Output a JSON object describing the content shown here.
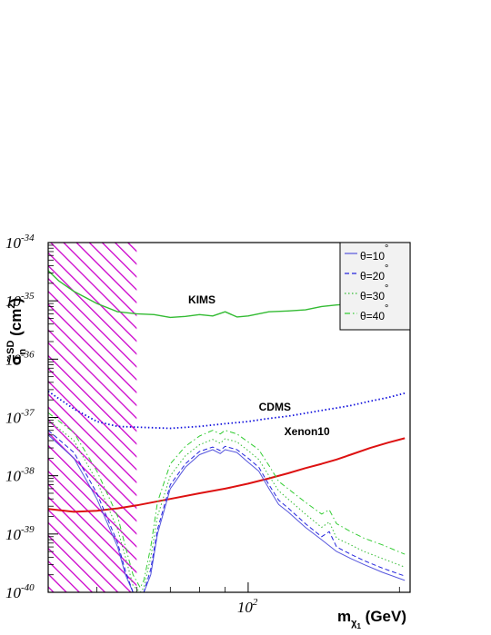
{
  "chart_data": {
    "type": "line",
    "title": "",
    "xscale": "log",
    "yscale": "log",
    "xlim": [
      40,
      210
    ],
    "ylim": [
      1e-40,
      1e-34
    ],
    "x_ticks": [
      {
        "value": 100,
        "base": "10",
        "exp": "2"
      }
    ],
    "y_ticks": [
      {
        "value": 1e-34,
        "base": "10",
        "exp": "-34"
      },
      {
        "value": 1e-35,
        "base": "10",
        "exp": "-35"
      },
      {
        "value": 1e-36,
        "base": "10",
        "exp": "-36"
      },
      {
        "value": 1e-37,
        "base": "10",
        "exp": "-37"
      },
      {
        "value": 1e-38,
        "base": "10",
        "exp": "-38"
      },
      {
        "value": 1e-39,
        "base": "10",
        "exp": "-39"
      },
      {
        "value": 1e-40,
        "base": "10",
        "exp": "-40"
      }
    ],
    "xlabel": {
      "main": "m",
      "sub": "χ",
      "subsub": "1",
      "unit": " (GeV)"
    },
    "ylabel": {
      "sigma": "σ̃",
      "sub": "n",
      "sup": "SD",
      "unit": " (cm",
      "unit_sup": "2",
      "close": ")"
    },
    "excluded_region": {
      "x": [
        40,
        60
      ],
      "color": "#cc00cc",
      "style": "hatched"
    },
    "legend": {
      "position": "top-right",
      "entries": [
        {
          "pre": "θ=10",
          "deg": "°",
          "color": "#5555dd",
          "dash": "solid"
        },
        {
          "pre": "θ=20",
          "deg": "°",
          "color": "#2222dd",
          "dash": "dashed"
        },
        {
          "pre": "θ=30",
          "deg": "°",
          "color": "#33bb33",
          "dash": "dotted"
        },
        {
          "pre": "θ=40",
          "deg": "°",
          "color": "#33cc33",
          "dash": "dashdot"
        }
      ]
    },
    "series": [
      {
        "name": "KIMS",
        "color": "#33bb33",
        "dash": "solid",
        "width": 1.4,
        "label_at": [
          76,
          9e-36
        ],
        "x": [
          40,
          42,
          45,
          50,
          55,
          60,
          65,
          70,
          75,
          80,
          85,
          90,
          95,
          100,
          110,
          120,
          130,
          140,
          150,
          160,
          175,
          190,
          205
        ],
        "y": [
          3.3e-35,
          2.2e-35,
          1.45e-35,
          9e-36,
          6.5e-36,
          6e-36,
          5.8e-36,
          5.2e-36,
          5.4e-36,
          5.8e-36,
          5.5e-36,
          6.5e-36,
          5.3e-36,
          5.5e-36,
          6.5e-36,
          6.7e-36,
          7e-36,
          8e-36,
          8.5e-36,
          8.8e-36,
          9.5e-36,
          1e-35,
          1.1e-35
        ]
      },
      {
        "name": "CDMS",
        "color": "#1111dd",
        "dash": "dotted",
        "width": 1.8,
        "label_at": [
          105,
          1.3e-37
        ],
        "x": [
          40,
          45,
          50,
          55,
          60,
          70,
          80,
          90,
          100,
          110,
          120,
          130,
          140,
          150,
          160,
          175,
          190,
          205
        ],
        "y": [
          2.8e-37,
          1.4e-37,
          8.5e-38,
          7e-38,
          6.8e-38,
          6.5e-38,
          7e-38,
          7.8e-38,
          8.5e-38,
          9.6e-38,
          1.05e-37,
          1.18e-37,
          1.32e-37,
          1.45e-37,
          1.6e-37,
          1.9e-37,
          2.2e-37,
          2.6e-37
        ]
      },
      {
        "name": "Xenon10",
        "color": "#dd1111",
        "dash": "solid",
        "width": 2,
        "label_at": [
          118,
          5e-38
        ],
        "x": [
          40,
          45,
          50,
          55,
          60,
          70,
          80,
          90,
          100,
          110,
          120,
          130,
          140,
          150,
          160,
          175,
          190,
          205
        ],
        "y": [
          2.7e-39,
          2.4e-39,
          2.5e-39,
          2.75e-39,
          3.1e-39,
          4e-39,
          5e-39,
          6e-39,
          7.3e-39,
          9e-39,
          1.1e-38,
          1.35e-38,
          1.6e-38,
          1.9e-38,
          2.3e-38,
          3e-38,
          3.7e-38,
          4.4e-38
        ]
      },
      {
        "name": "θ=10°",
        "color": "#5555dd",
        "dash": "solid",
        "width": 1,
        "x": [
          40,
          45,
          50,
          55,
          57,
          59,
          61,
          62,
          64,
          66,
          70,
          75,
          80,
          85,
          88,
          90,
          95,
          100,
          105,
          110,
          115,
          120,
          130,
          140,
          150,
          160,
          170,
          185,
          205
        ],
        "y": [
          5e-38,
          2e-38,
          4e-39,
          6e-40,
          2e-40,
          1e-40,
          1e-40,
          1e-40,
          2e-40,
          1e-39,
          6e-39,
          1.4e-38,
          2.3e-38,
          2.8e-38,
          2.4e-38,
          2.8e-38,
          2.5e-38,
          1.7e-38,
          1.2e-38,
          6e-39,
          3.2e-39,
          2.4e-39,
          1.3e-39,
          8e-40,
          5e-40,
          3.8e-40,
          3e-40,
          2.2e-40,
          1.6e-40
        ]
      },
      {
        "name": "θ=20°",
        "color": "#2222dd",
        "dash": "dashed",
        "width": 1,
        "x": [
          40,
          45,
          50,
          55,
          57,
          59,
          61,
          62,
          64,
          66,
          70,
          75,
          80,
          85,
          88,
          90,
          95,
          100,
          105,
          110,
          115,
          120,
          130,
          140,
          145,
          150,
          160,
          170,
          185,
          205
        ],
        "y": [
          6e-38,
          2.5e-38,
          5e-39,
          7e-40,
          2.3e-40,
          1e-40,
          1e-40,
          1e-40,
          2.5e-40,
          1.2e-39,
          7e-39,
          1.6e-38,
          2.6e-38,
          3.1e-38,
          2.7e-38,
          3.2e-38,
          2.8e-38,
          2e-38,
          1.4e-38,
          7e-39,
          3.8e-39,
          2.8e-39,
          1.5e-39,
          9e-40,
          1.1e-39,
          6e-40,
          4.5e-40,
          3.5e-40,
          2.6e-40,
          1.9e-40
        ]
      },
      {
        "name": "θ=30°",
        "color": "#33bb33",
        "dash": "dotted",
        "width": 1,
        "x": [
          40,
          45,
          50,
          55,
          57,
          59,
          61,
          62,
          64,
          66,
          70,
          75,
          80,
          85,
          88,
          90,
          95,
          100,
          105,
          110,
          115,
          120,
          130,
          140,
          145,
          150,
          160,
          170,
          185,
          205
        ],
        "y": [
          9e-38,
          4e-38,
          8e-39,
          1.2e-39,
          4e-40,
          1.3e-40,
          1e-40,
          1.2e-40,
          4e-40,
          2e-39,
          1e-38,
          2.2e-38,
          3.4e-38,
          4.2e-38,
          3.6e-38,
          4.3e-38,
          3.8e-38,
          2.7e-38,
          1.9e-38,
          1e-38,
          5.5e-39,
          4e-39,
          2.2e-39,
          1.3e-39,
          1.6e-39,
          8.5e-40,
          6.5e-40,
          5e-40,
          3.8e-40,
          2.7e-40
        ]
      },
      {
        "name": "θ=40°",
        "color": "#33cc33",
        "dash": "dashdot",
        "width": 1,
        "x": [
          40,
          45,
          50,
          55,
          57,
          59,
          61,
          62,
          64,
          66,
          70,
          75,
          80,
          85,
          88,
          90,
          95,
          100,
          105,
          110,
          115,
          120,
          130,
          140,
          145,
          150,
          160,
          170,
          185,
          205
        ],
        "y": [
          1.2e-37,
          5.5e-38,
          1.2e-38,
          2e-39,
          6e-40,
          2e-40,
          1.2e-40,
          1.6e-40,
          6e-40,
          3.5e-39,
          1.6e-38,
          3.2e-38,
          4.8e-38,
          6e-38,
          5.2e-38,
          6e-38,
          5.2e-38,
          3.8e-38,
          2.8e-38,
          1.5e-38,
          8e-39,
          6e-39,
          3.5e-39,
          2.2e-39,
          2.6e-39,
          1.5e-39,
          1.1e-39,
          8.5e-40,
          6.5e-40,
          4.5e-40
        ]
      }
    ]
  }
}
